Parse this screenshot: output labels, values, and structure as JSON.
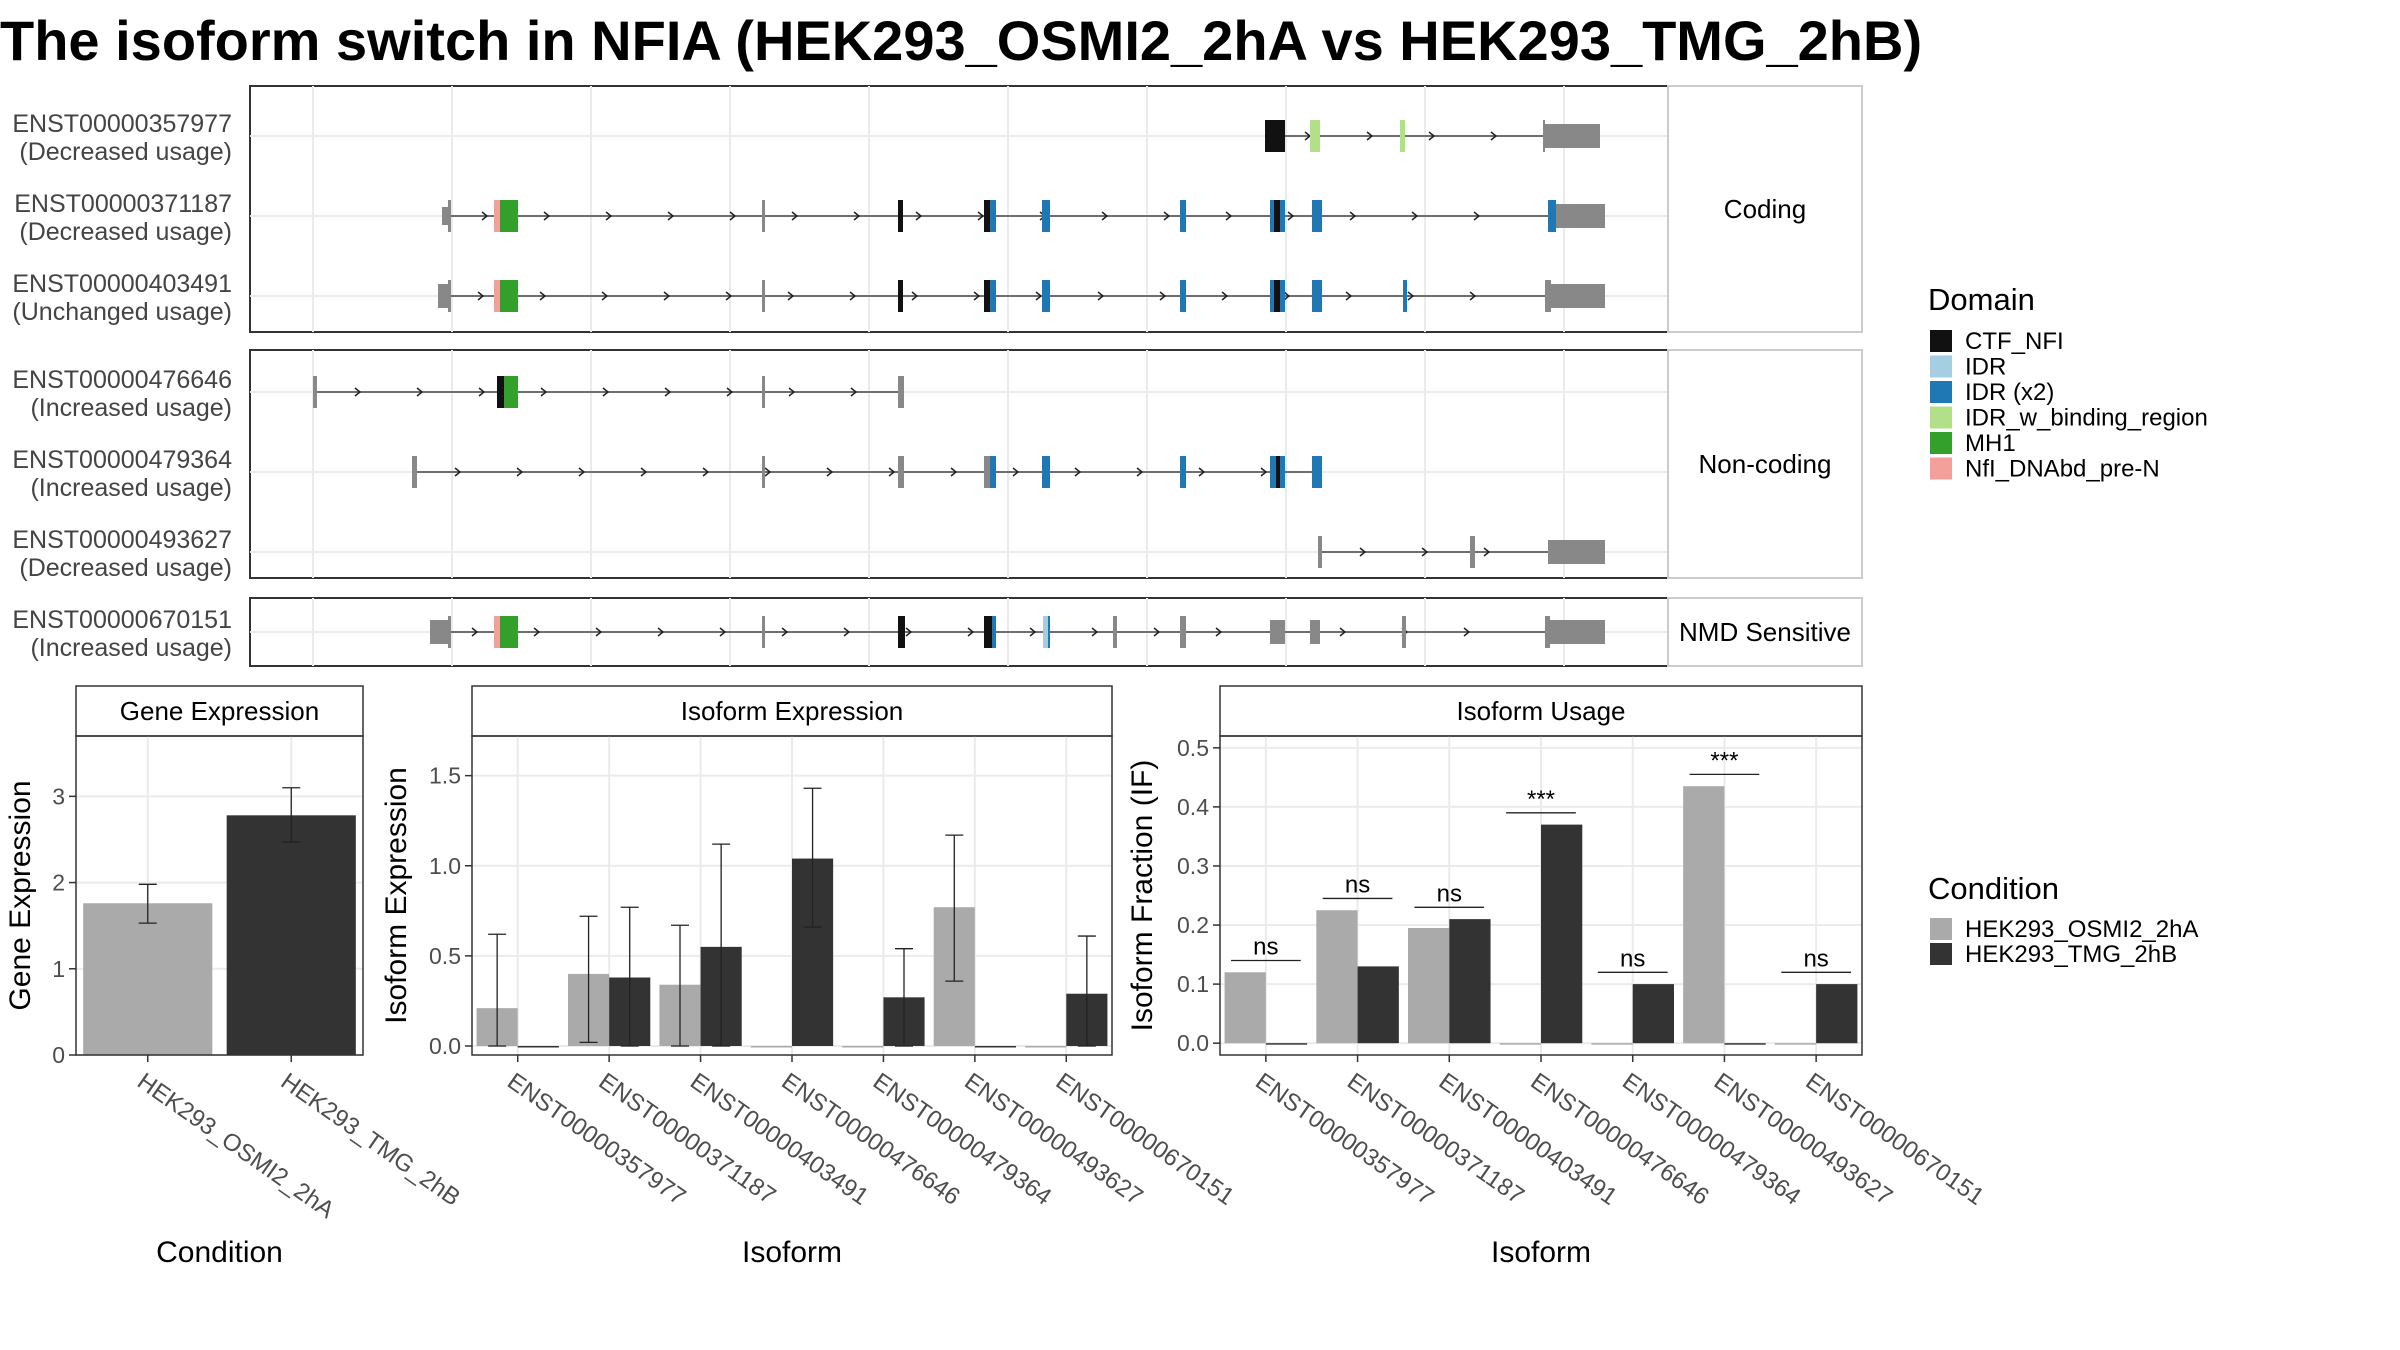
{
  "title": "The isoform switch in NFIA (HEK293_OSMI2_2hA vs HEK293_TMG_2hB)",
  "domain_colors": {
    "CTF_NFI": "#111111",
    "IDR": "#a6cee3",
    "IDR (x2)": "#1f78b4",
    "IDR_w_binding_region": "#b2df8a",
    "MH1": "#33a02c",
    "NfI_DNAbd_pre-N": "#f4a09a"
  },
  "condition_colors": {
    "HEK293_OSMI2_2hA": "#aaaaaa",
    "HEK293_TMG_2hB": "#333333"
  },
  "legend": {
    "domain_title": "Domain",
    "domain_items": [
      "CTF_NFI",
      "IDR",
      "IDR (x2)",
      "IDR_w_binding_region",
      "MH1",
      "NfI_DNAbd_pre-N"
    ],
    "condition_title": "Condition",
    "condition_items": [
      "HEK293_OSMI2_2hA",
      "HEK293_TMG_2hB"
    ]
  },
  "structure": {
    "panels": [
      {
        "strip": "Coding",
        "isoforms": [
          {
            "id": "ENST00000357977",
            "usage": "(Decreased usage)"
          },
          {
            "id": "ENST00000371187",
            "usage": "(Decreased usage)"
          },
          {
            "id": "ENST00000403491",
            "usage": "(Unchanged usage)"
          }
        ]
      },
      {
        "strip": "Non-coding",
        "isoforms": [
          {
            "id": "ENST00000476646",
            "usage": "(Increased usage)"
          },
          {
            "id": "ENST00000479364",
            "usage": "(Increased usage)"
          },
          {
            "id": "ENST00000493627",
            "usage": "(Decreased usage)"
          }
        ]
      },
      {
        "strip": "NMD Sensitive",
        "isoforms": [
          {
            "id": "ENST00000670151",
            "usage": "(Increased usage)"
          }
        ]
      }
    ]
  },
  "chart_data": [
    {
      "type": "bar",
      "strip": "Gene Expression",
      "xlabel": "Condition",
      "ylabel": "Gene Expression",
      "categories": [
        "HEK293_OSMI2_2hA",
        "HEK293_TMG_2hB"
      ],
      "values": [
        1.76,
        2.78
      ],
      "ci_low": [
        1.53,
        2.47
      ],
      "ci_high": [
        1.98,
        3.1
      ],
      "ylim": [
        0,
        3.7
      ],
      "yticks": [
        0,
        1,
        2,
        3
      ]
    },
    {
      "type": "bar",
      "strip": "Isoform Expression",
      "xlabel": "Isoform",
      "ylabel": "Isoform Expression",
      "categories": [
        "ENST00000357977",
        "ENST00000371187",
        "ENST00000403491",
        "ENST00000476646",
        "ENST00000479364",
        "ENST00000493627",
        "ENST00000670151"
      ],
      "series": [
        {
          "name": "HEK293_OSMI2_2hA",
          "values": [
            0.21,
            0.4,
            0.34,
            0.0,
            0.0,
            0.77,
            0.0
          ],
          "ci_low": [
            0.0,
            0.02,
            0.0,
            0.0,
            0.0,
            0.36,
            0.0
          ],
          "ci_high": [
            0.62,
            0.72,
            0.67,
            0.0,
            0.0,
            1.17,
            0.0
          ]
        },
        {
          "name": "HEK293_TMG_2hB",
          "values": [
            0.0,
            0.38,
            0.55,
            1.04,
            0.27,
            0.0,
            0.29
          ],
          "ci_low": [
            0.0,
            0.0,
            0.0,
            0.66,
            0.0,
            0.0,
            0.0
          ],
          "ci_high": [
            0.0,
            0.77,
            1.12,
            1.43,
            0.54,
            0.0,
            0.61
          ]
        }
      ],
      "ylim": [
        -0.05,
        1.72
      ],
      "yticks": [
        0.0,
        0.5,
        1.0,
        1.5
      ]
    },
    {
      "type": "bar",
      "strip": "Isoform Usage",
      "xlabel": "Isoform",
      "ylabel": "Isoform Fraction (IF)",
      "categories": [
        "ENST00000357977",
        "ENST00000371187",
        "ENST00000403491",
        "ENST00000476646",
        "ENST00000479364",
        "ENST00000493627",
        "ENST00000670151"
      ],
      "series": [
        {
          "name": "HEK293_OSMI2_2hA",
          "values": [
            0.12,
            0.225,
            0.195,
            0.0,
            0.0,
            0.435,
            0.0
          ]
        },
        {
          "name": "HEK293_TMG_2hB",
          "values": [
            0.0,
            0.13,
            0.21,
            0.37,
            0.1,
            0.0,
            0.1
          ]
        }
      ],
      "significance": [
        "ns",
        "ns",
        "ns",
        "***",
        "ns",
        "***",
        "ns"
      ],
      "sig_y": [
        0.14,
        0.245,
        0.23,
        0.39,
        0.12,
        0.455,
        0.12
      ],
      "ylim": [
        -0.02,
        0.52
      ],
      "yticks": [
        0.0,
        0.1,
        0.2,
        0.3,
        0.4,
        0.5
      ]
    }
  ]
}
